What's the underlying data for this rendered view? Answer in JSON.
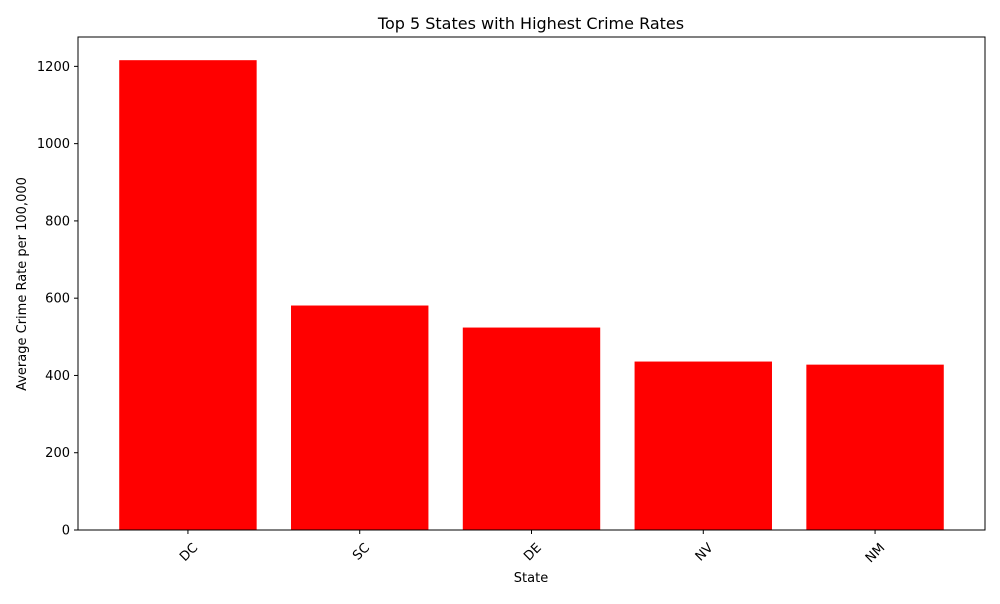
{
  "chart_data": {
    "type": "bar",
    "title": "Top 5 States with Highest Crime Rates",
    "xlabel": "State",
    "ylabel": "Average Crime Rate per 100,000",
    "categories": [
      "DC",
      "SC",
      "DE",
      "NV",
      "NM"
    ],
    "values": [
      1216,
      581,
      524,
      436,
      428
    ],
    "ylim": [
      0,
      1276
    ],
    "yticks": [
      0,
      200,
      400,
      600,
      800,
      1000,
      1200
    ],
    "bar_color": "#ff0000",
    "grid": false,
    "legend": "none"
  }
}
